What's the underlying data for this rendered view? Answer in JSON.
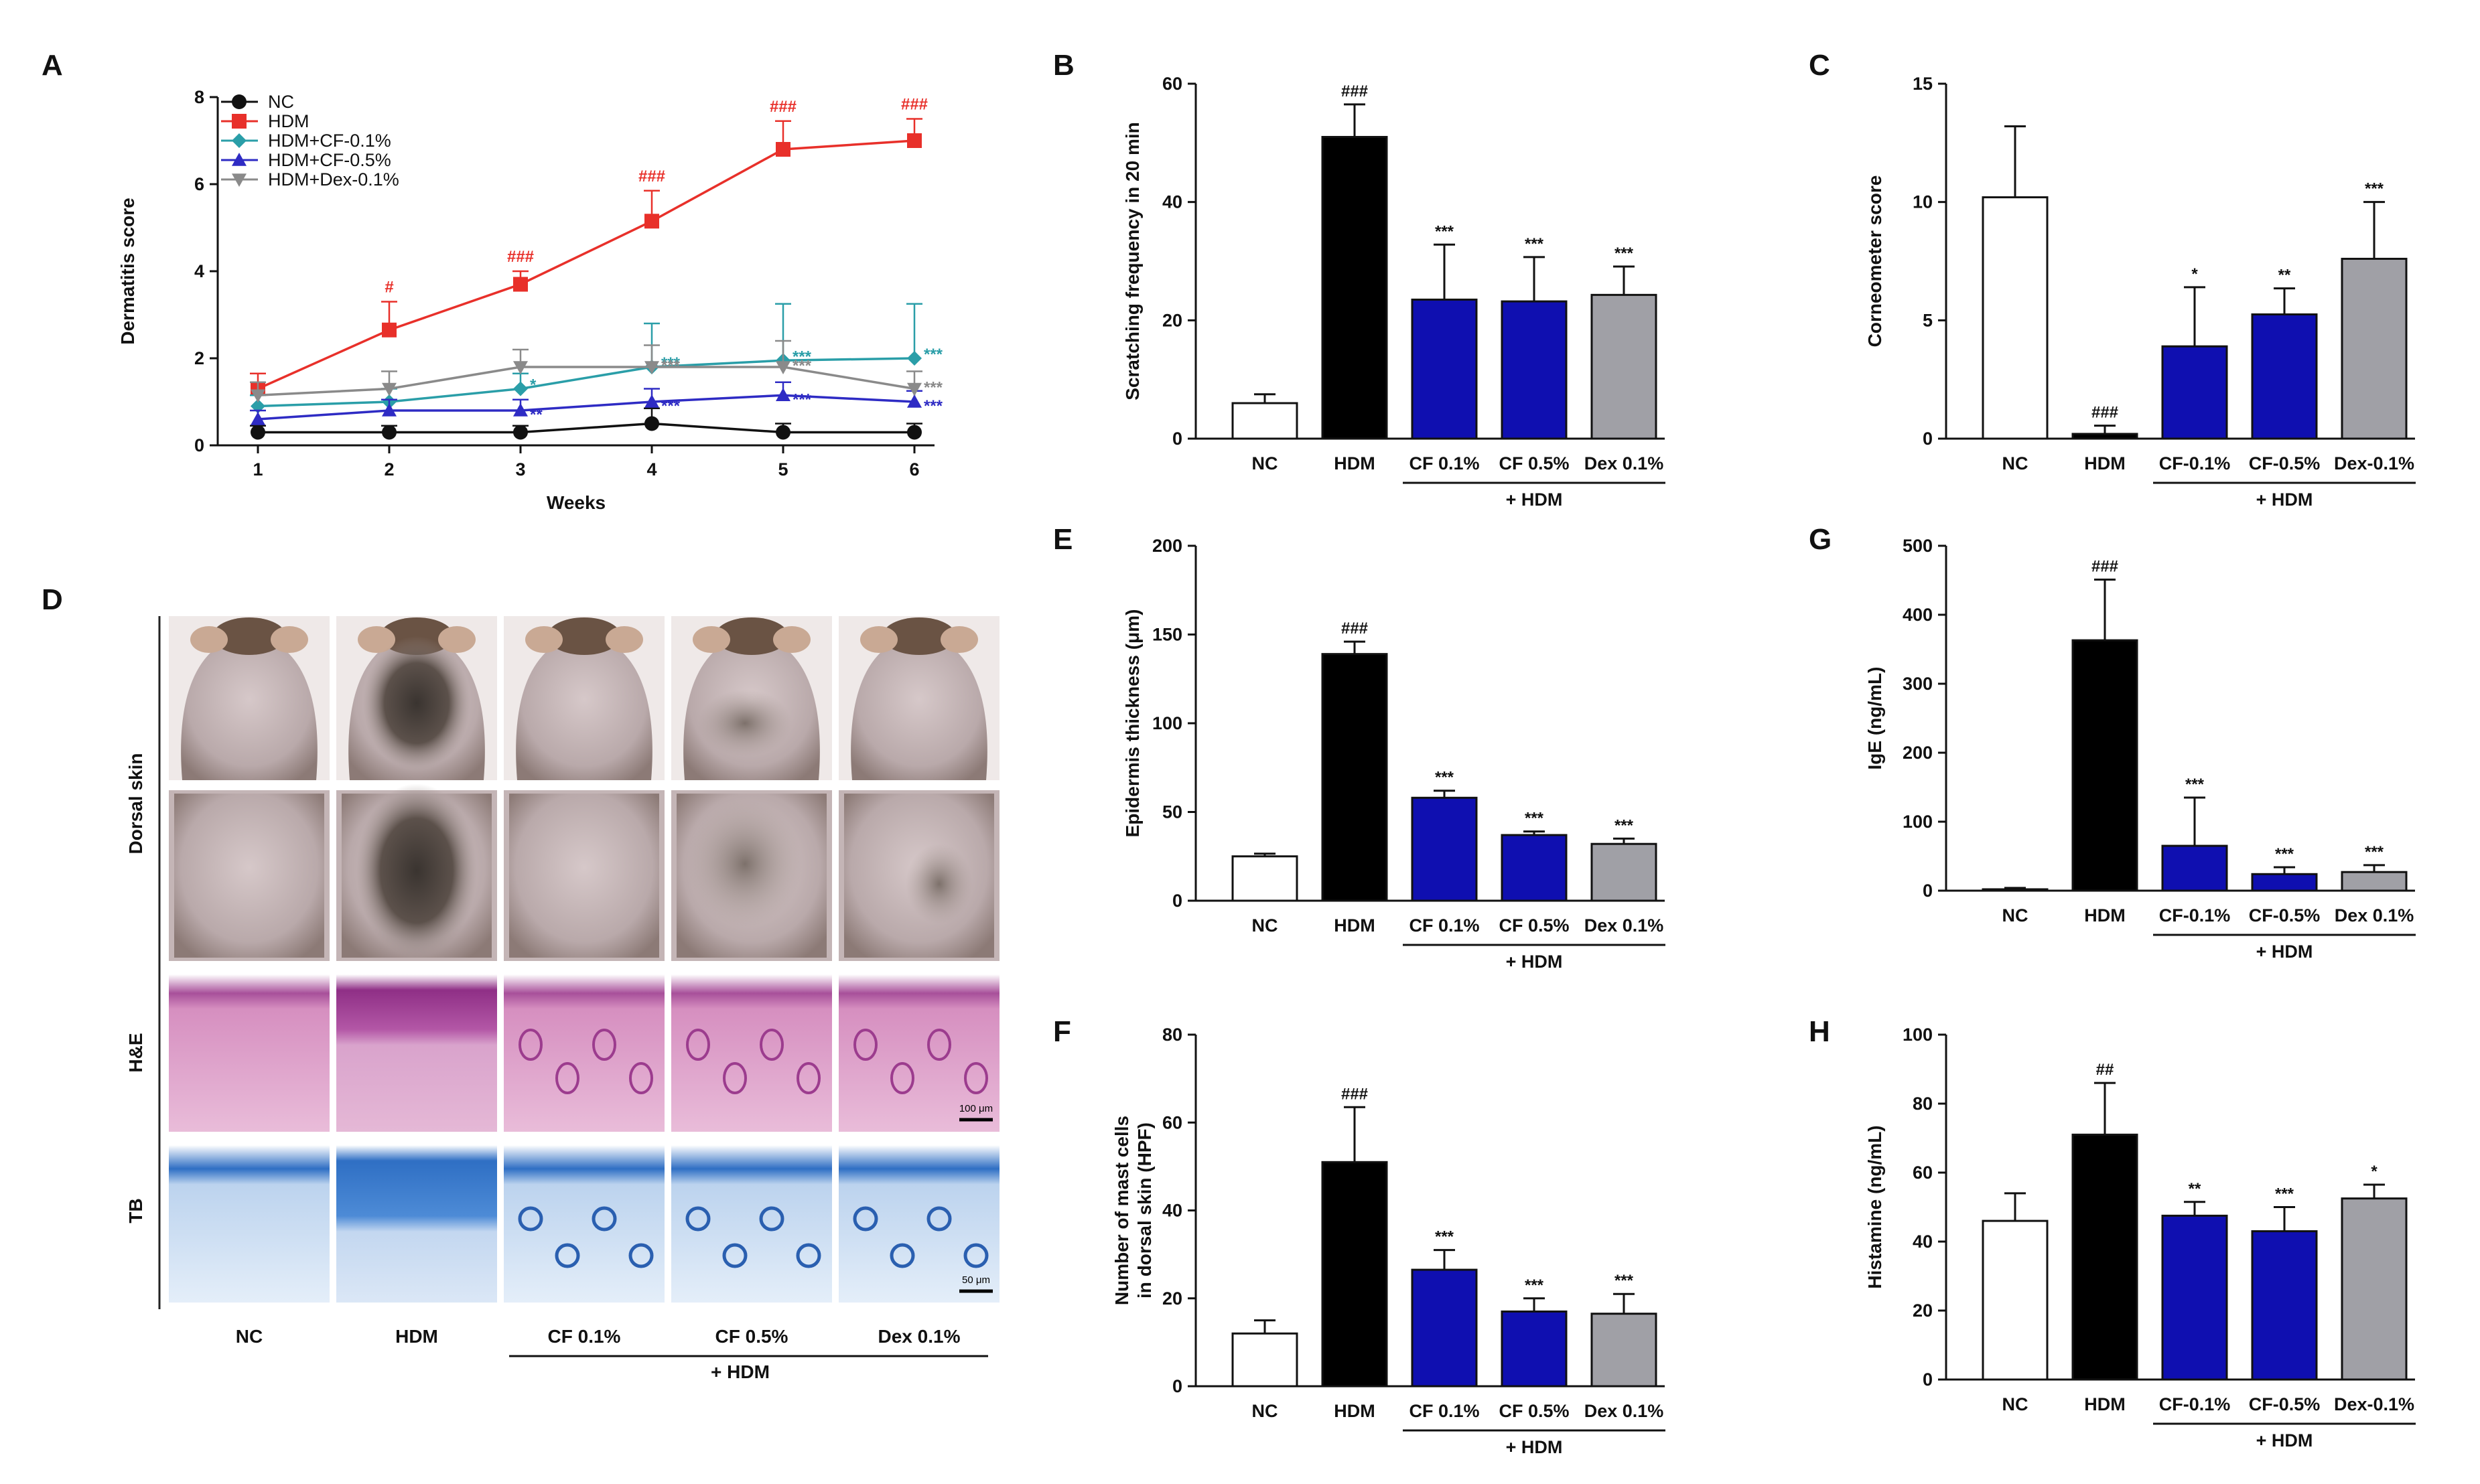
{
  "chart_data": [
    {
      "panel": "A",
      "type": "line",
      "xlabel": "Weeks",
      "ylabel": "Dermatitis score",
      "x": [
        1,
        2,
        3,
        4,
        5,
        6
      ],
      "xticks": [
        "1",
        "2",
        "3",
        "4",
        "5",
        "6"
      ],
      "ylim": [
        0,
        8
      ],
      "yticks": [
        "0",
        "2",
        "4",
        "6",
        "8"
      ],
      "series": [
        {
          "name": "NC",
          "color": "#111111",
          "marker": "circle",
          "values": [
            0.3,
            0.3,
            0.3,
            0.5,
            0.3,
            0.3
          ],
          "errors": [
            0.15,
            0.15,
            0.15,
            0.35,
            0.2,
            0.2
          ],
          "labels": [
            "",
            "",
            "",
            "",
            "",
            ""
          ]
        },
        {
          "name": "HDM",
          "color": "#e8302a",
          "marker": "square",
          "values": [
            1.3,
            2.65,
            3.7,
            5.15,
            6.8,
            7.0
          ],
          "errors": [
            0.35,
            0.65,
            0.3,
            0.7,
            0.65,
            0.5
          ],
          "labels": [
            "",
            "#",
            "###",
            "###",
            "###",
            "###"
          ]
        },
        {
          "name": "HDM+CF-0.1%",
          "color": "#2a9ea8",
          "marker": "diamond",
          "values": [
            0.9,
            1.0,
            1.3,
            1.8,
            1.95,
            2.0
          ],
          "errors": [
            0.25,
            0.3,
            0.35,
            1.0,
            1.3,
            1.25
          ],
          "labels": [
            "",
            "",
            "*",
            "***",
            "***",
            "***"
          ]
        },
        {
          "name": "HDM+CF-0.5%",
          "color": "#2e2bc4",
          "marker": "triangle",
          "values": [
            0.6,
            0.8,
            0.8,
            1.0,
            1.15,
            1.0
          ],
          "errors": [
            0.2,
            0.25,
            0.25,
            0.3,
            0.3,
            0.25
          ],
          "labels": [
            "",
            "",
            "**",
            "***",
            "***",
            "***"
          ]
        },
        {
          "name": "HDM+Dex-0.1%",
          "color": "#8a8a8a",
          "marker": "triangle-down",
          "values": [
            1.15,
            1.3,
            1.8,
            1.8,
            1.8,
            1.3
          ],
          "errors": [
            0.3,
            0.4,
            0.4,
            0.5,
            0.6,
            0.4
          ],
          "labels": [
            "",
            "",
            "",
            "***",
            "***",
            "***"
          ]
        }
      ]
    },
    {
      "panel": "B",
      "type": "bar",
      "ylabel": "Scratching frequency in 20 min",
      "ylim": [
        0,
        60
      ],
      "yticks": [
        "0",
        "20",
        "40",
        "60"
      ],
      "categories": [
        "NC",
        "HDM",
        "CF 0.1%",
        "CF 0.5%",
        "Dex 0.1%"
      ],
      "values": [
        6,
        51,
        23.5,
        23.2,
        24.3
      ],
      "errors": [
        1.5,
        5.5,
        9.3,
        7.5,
        4.8
      ],
      "labels": [
        "",
        "###",
        "***",
        "***",
        "***"
      ],
      "group_label": "+ HDM"
    },
    {
      "panel": "C",
      "type": "bar",
      "ylabel": "Corneometer score",
      "ylim": [
        0,
        15
      ],
      "yticks": [
        "0",
        "5",
        "10",
        "15"
      ],
      "categories": [
        "NC",
        "HDM",
        "CF-0.1%",
        "CF-0.5%",
        "Dex-0.1%"
      ],
      "values": [
        10.2,
        0.2,
        3.9,
        5.25,
        7.6
      ],
      "errors": [
        3.0,
        0.35,
        2.5,
        1.1,
        2.4
      ],
      "labels": [
        "",
        "###",
        "*",
        "**",
        "***"
      ],
      "group_label": "+ HDM"
    },
    {
      "panel": "E",
      "type": "bar",
      "ylabel": "Epidermis thickness  (μm)",
      "ylim": [
        0,
        200
      ],
      "yticks": [
        "0",
        "50",
        "100",
        "150",
        "200"
      ],
      "categories": [
        "NC",
        "HDM",
        "CF 0.1%",
        "CF 0.5%",
        "Dex 0.1%"
      ],
      "values": [
        25,
        139,
        58,
        37,
        32
      ],
      "errors": [
        1.5,
        7,
        4,
        2,
        3
      ],
      "labels": [
        "",
        "###",
        "***",
        "***",
        "***"
      ],
      "group_label": "+ HDM"
    },
    {
      "panel": "F",
      "type": "bar",
      "ylabel": [
        "Number of mast cells",
        "in dorsal skin  (HPF)"
      ],
      "ylim": [
        0,
        80
      ],
      "yticks": [
        "0",
        "20",
        "40",
        "60",
        "80"
      ],
      "categories": [
        "NC",
        "HDM",
        "CF 0.1%",
        "CF 0.5%",
        "Dex 0.1%"
      ],
      "values": [
        12,
        51,
        26.5,
        17,
        16.5
      ],
      "errors": [
        3,
        12.5,
        4.5,
        3,
        4.5
      ],
      "labels": [
        "",
        "###",
        "***",
        "***",
        "***"
      ],
      "group_label": "+ HDM"
    },
    {
      "panel": "G",
      "type": "bar",
      "ylabel": "IgE (ng/mL)",
      "ylim": [
        0,
        500
      ],
      "yticks": [
        "0",
        "100",
        "200",
        "300",
        "400",
        "500"
      ],
      "categories": [
        "NC",
        "HDM",
        "CF-0.1%",
        "CF-0.5%",
        "Dex 0.1%"
      ],
      "values": [
        2,
        363,
        65,
        24,
        27
      ],
      "errors": [
        2,
        88,
        70,
        10,
        10
      ],
      "labels": [
        "",
        "###",
        "***",
        "***",
        "***"
      ],
      "group_label": "+ HDM"
    },
    {
      "panel": "H",
      "type": "bar",
      "ylabel": "Histamine  (ng/mL)",
      "ylim": [
        0,
        100
      ],
      "yticks": [
        "0",
        "20",
        "40",
        "60",
        "80",
        "100"
      ],
      "categories": [
        "NC",
        "HDM",
        "CF-0.1%",
        "CF-0.5%",
        "Dex-0.1%"
      ],
      "values": [
        46,
        71,
        47.5,
        43,
        52.5
      ],
      "errors": [
        8,
        15,
        4,
        7,
        4
      ],
      "labels": [
        "",
        "##",
        "**",
        "***",
        "*"
      ],
      "group_label": "+ HDM"
    }
  ],
  "bar_colors": [
    "#ffffff",
    "#000000",
    "#0f0fb0",
    "#0f0fb0",
    "#a0a0a6"
  ],
  "panel_d": {
    "letter": "D",
    "rows": [
      "Dorsal skin",
      "H&E",
      "TB"
    ],
    "columns": [
      "NC",
      "HDM",
      "CF 0.1%",
      "CF 0.5%",
      "Dex 0.1%"
    ],
    "group_label": "+ HDM",
    "scale_labels": [
      "100 μm",
      "50 μm"
    ]
  }
}
